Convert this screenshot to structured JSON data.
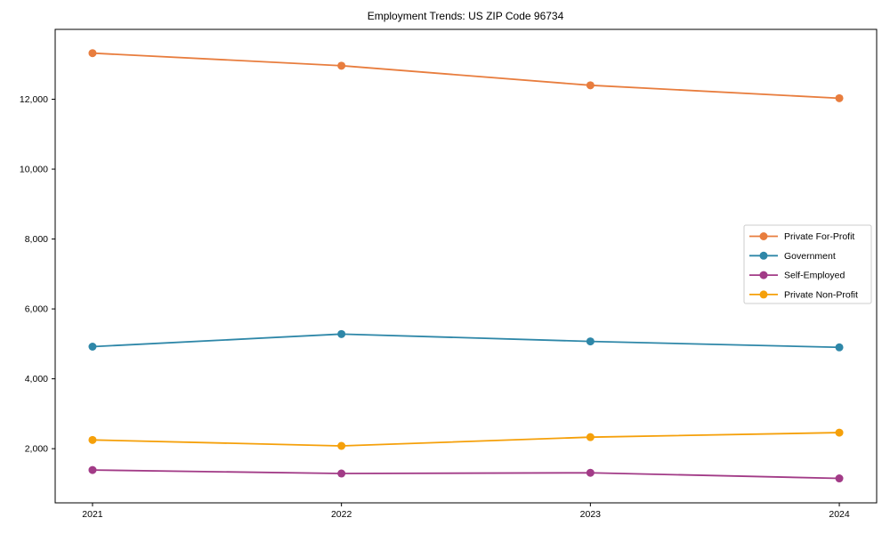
{
  "chart_data": {
    "type": "line",
    "title": "Employment Trends: US ZIP Code 96734",
    "xlabel": "",
    "ylabel": "",
    "x": [
      2021,
      2022,
      2023,
      2024
    ],
    "x_tick_labels": [
      "2021",
      "2022",
      "2023",
      "2024"
    ],
    "series": [
      {
        "name": "Private For-Profit",
        "color": "#e87d3e",
        "values": [
          13320,
          12960,
          12400,
          12030
        ]
      },
      {
        "name": "Government",
        "color": "#2e87a8",
        "values": [
          4920,
          5280,
          5070,
          4900
        ]
      },
      {
        "name": "Self-Employed",
        "color": "#a23b87",
        "values": [
          1390,
          1290,
          1310,
          1150
        ]
      },
      {
        "name": "Private Non-Profit",
        "color": "#f5a00a",
        "values": [
          2250,
          2080,
          2330,
          2460
        ]
      }
    ],
    "y_ticks": [
      2000,
      4000,
      6000,
      8000,
      10000,
      12000
    ],
    "y_tick_labels": [
      "2,000",
      "4,000",
      "6,000",
      "8,000",
      "10,000",
      "12,000"
    ],
    "xlim": [
      2020.85,
      2024.15
    ],
    "ylim": [
      450,
      14000
    ],
    "grid": false,
    "legend_position": "center right",
    "marker": "circle",
    "frame": "box",
    "axis_color": "#000000",
    "legend_border_color": "#cccccc",
    "background_color": "#ffffff"
  }
}
